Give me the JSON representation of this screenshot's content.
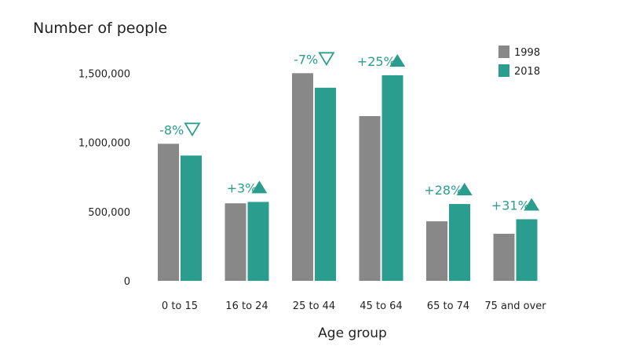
{
  "chart_data": {
    "type": "bar",
    "title": "",
    "ylabel": "Number of people",
    "xlabel": "Age group",
    "ylim": [
      0,
      1700000
    ],
    "yticks": [
      {
        "value": 0,
        "label": "0"
      },
      {
        "value": 500000,
        "label": "500,000"
      },
      {
        "value": 1000000,
        "label": "1,000,000"
      },
      {
        "value": 1500000,
        "label": "1,500,000"
      }
    ],
    "categories": [
      "0 to 15",
      "16 to 24",
      "25 to 44",
      "45 to 64",
      "65 to 74",
      "75 and over"
    ],
    "series": [
      {
        "name": "1998",
        "color": "#888888",
        "values": [
          990000,
          560000,
          1500000,
          1190000,
          430000,
          340000
        ]
      },
      {
        "name": "2018",
        "color": "#2a9d8f",
        "values": [
          905000,
          570000,
          1395000,
          1485000,
          555000,
          445000
        ]
      }
    ],
    "changes": [
      {
        "label": "-8%",
        "direction": "down"
      },
      {
        "label": "+3%",
        "direction": "up"
      },
      {
        "label": "-7%",
        "direction": "down"
      },
      {
        "label": "+25%",
        "direction": "up"
      },
      {
        "label": "+28%",
        "direction": "up"
      },
      {
        "label": "+31%",
        "direction": "up"
      }
    ],
    "change_color": "#2a9d8f",
    "legend_position": "top-right",
    "grid": false
  }
}
